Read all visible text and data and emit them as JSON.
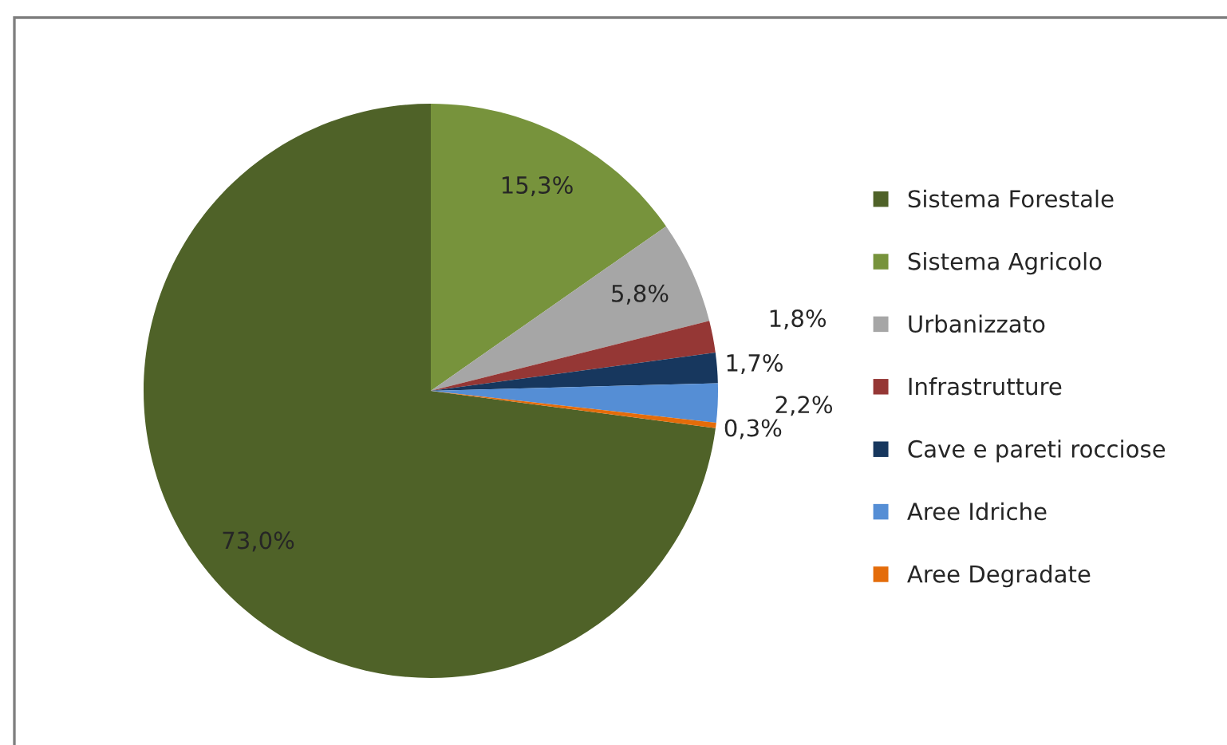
{
  "chart_data": {
    "type": "pie",
    "categories": [
      "Sistema Forestale",
      "Sistema Agricolo",
      "Urbanizzato",
      "Infrastrutture",
      "Cave e pareti rocciose",
      "Aree Idriche",
      "Aree Degradate"
    ],
    "values": [
      73.0,
      15.3,
      5.8,
      1.8,
      1.7,
      2.2,
      0.3
    ],
    "colors": [
      "#4f6228",
      "#77933c",
      "#a6a6a6",
      "#953735",
      "#17375e",
      "#558ed5",
      "#e46c0a"
    ],
    "value_labels": [
      "73,0%",
      "15,3%",
      "5,8%",
      "1,8%",
      "1,7%",
      "2,2%",
      "0,3%"
    ],
    "legend": "right"
  }
}
